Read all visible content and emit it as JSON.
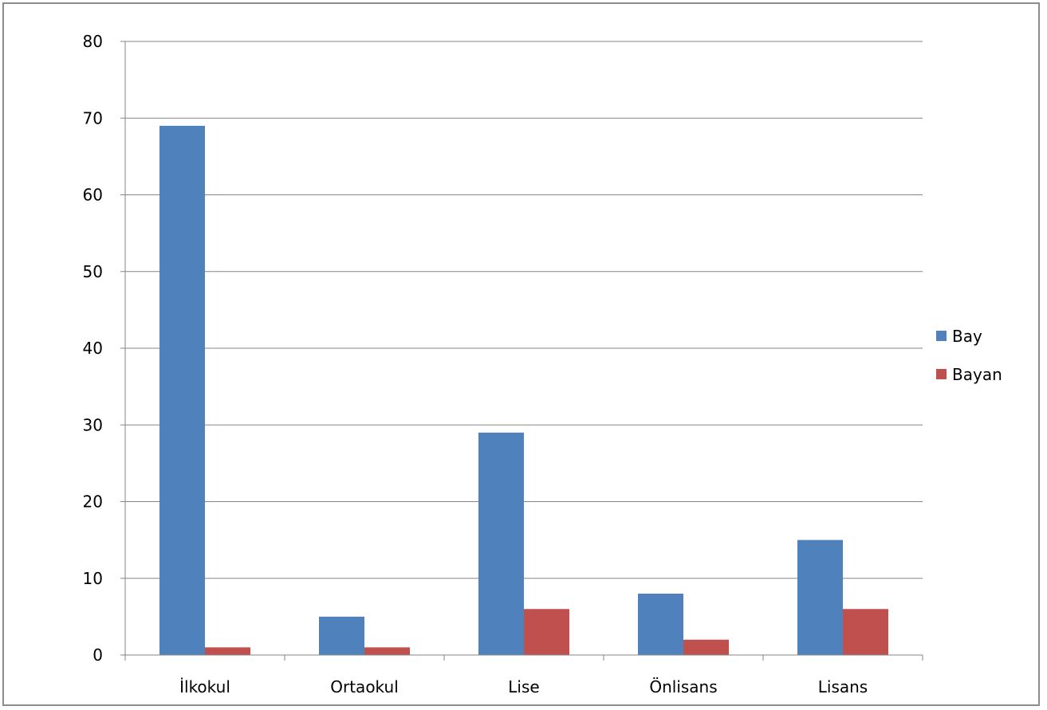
{
  "chart_data": {
    "type": "bar",
    "categories": [
      "İlkokul",
      "Ortaokul",
      "Lise",
      "Önlisans",
      "Lisans"
    ],
    "series": [
      {
        "name": "Bay",
        "values": [
          69,
          5,
          29,
          8,
          15
        ],
        "color": "#4f81bd"
      },
      {
        "name": "Bayan",
        "values": [
          1,
          1,
          6,
          2,
          6
        ],
        "color": "#c0504d"
      }
    ],
    "title": "",
    "xlabel": "",
    "ylabel": "",
    "ylim": [
      0,
      80
    ],
    "yticks": [
      "0",
      "10",
      "20",
      "30",
      "40",
      "50",
      "60",
      "70",
      "80"
    ],
    "grid": true,
    "legend_position": "right"
  },
  "colors": {
    "gridline": "#868686",
    "axis": "#868686",
    "frame": "#8c8c8c"
  }
}
